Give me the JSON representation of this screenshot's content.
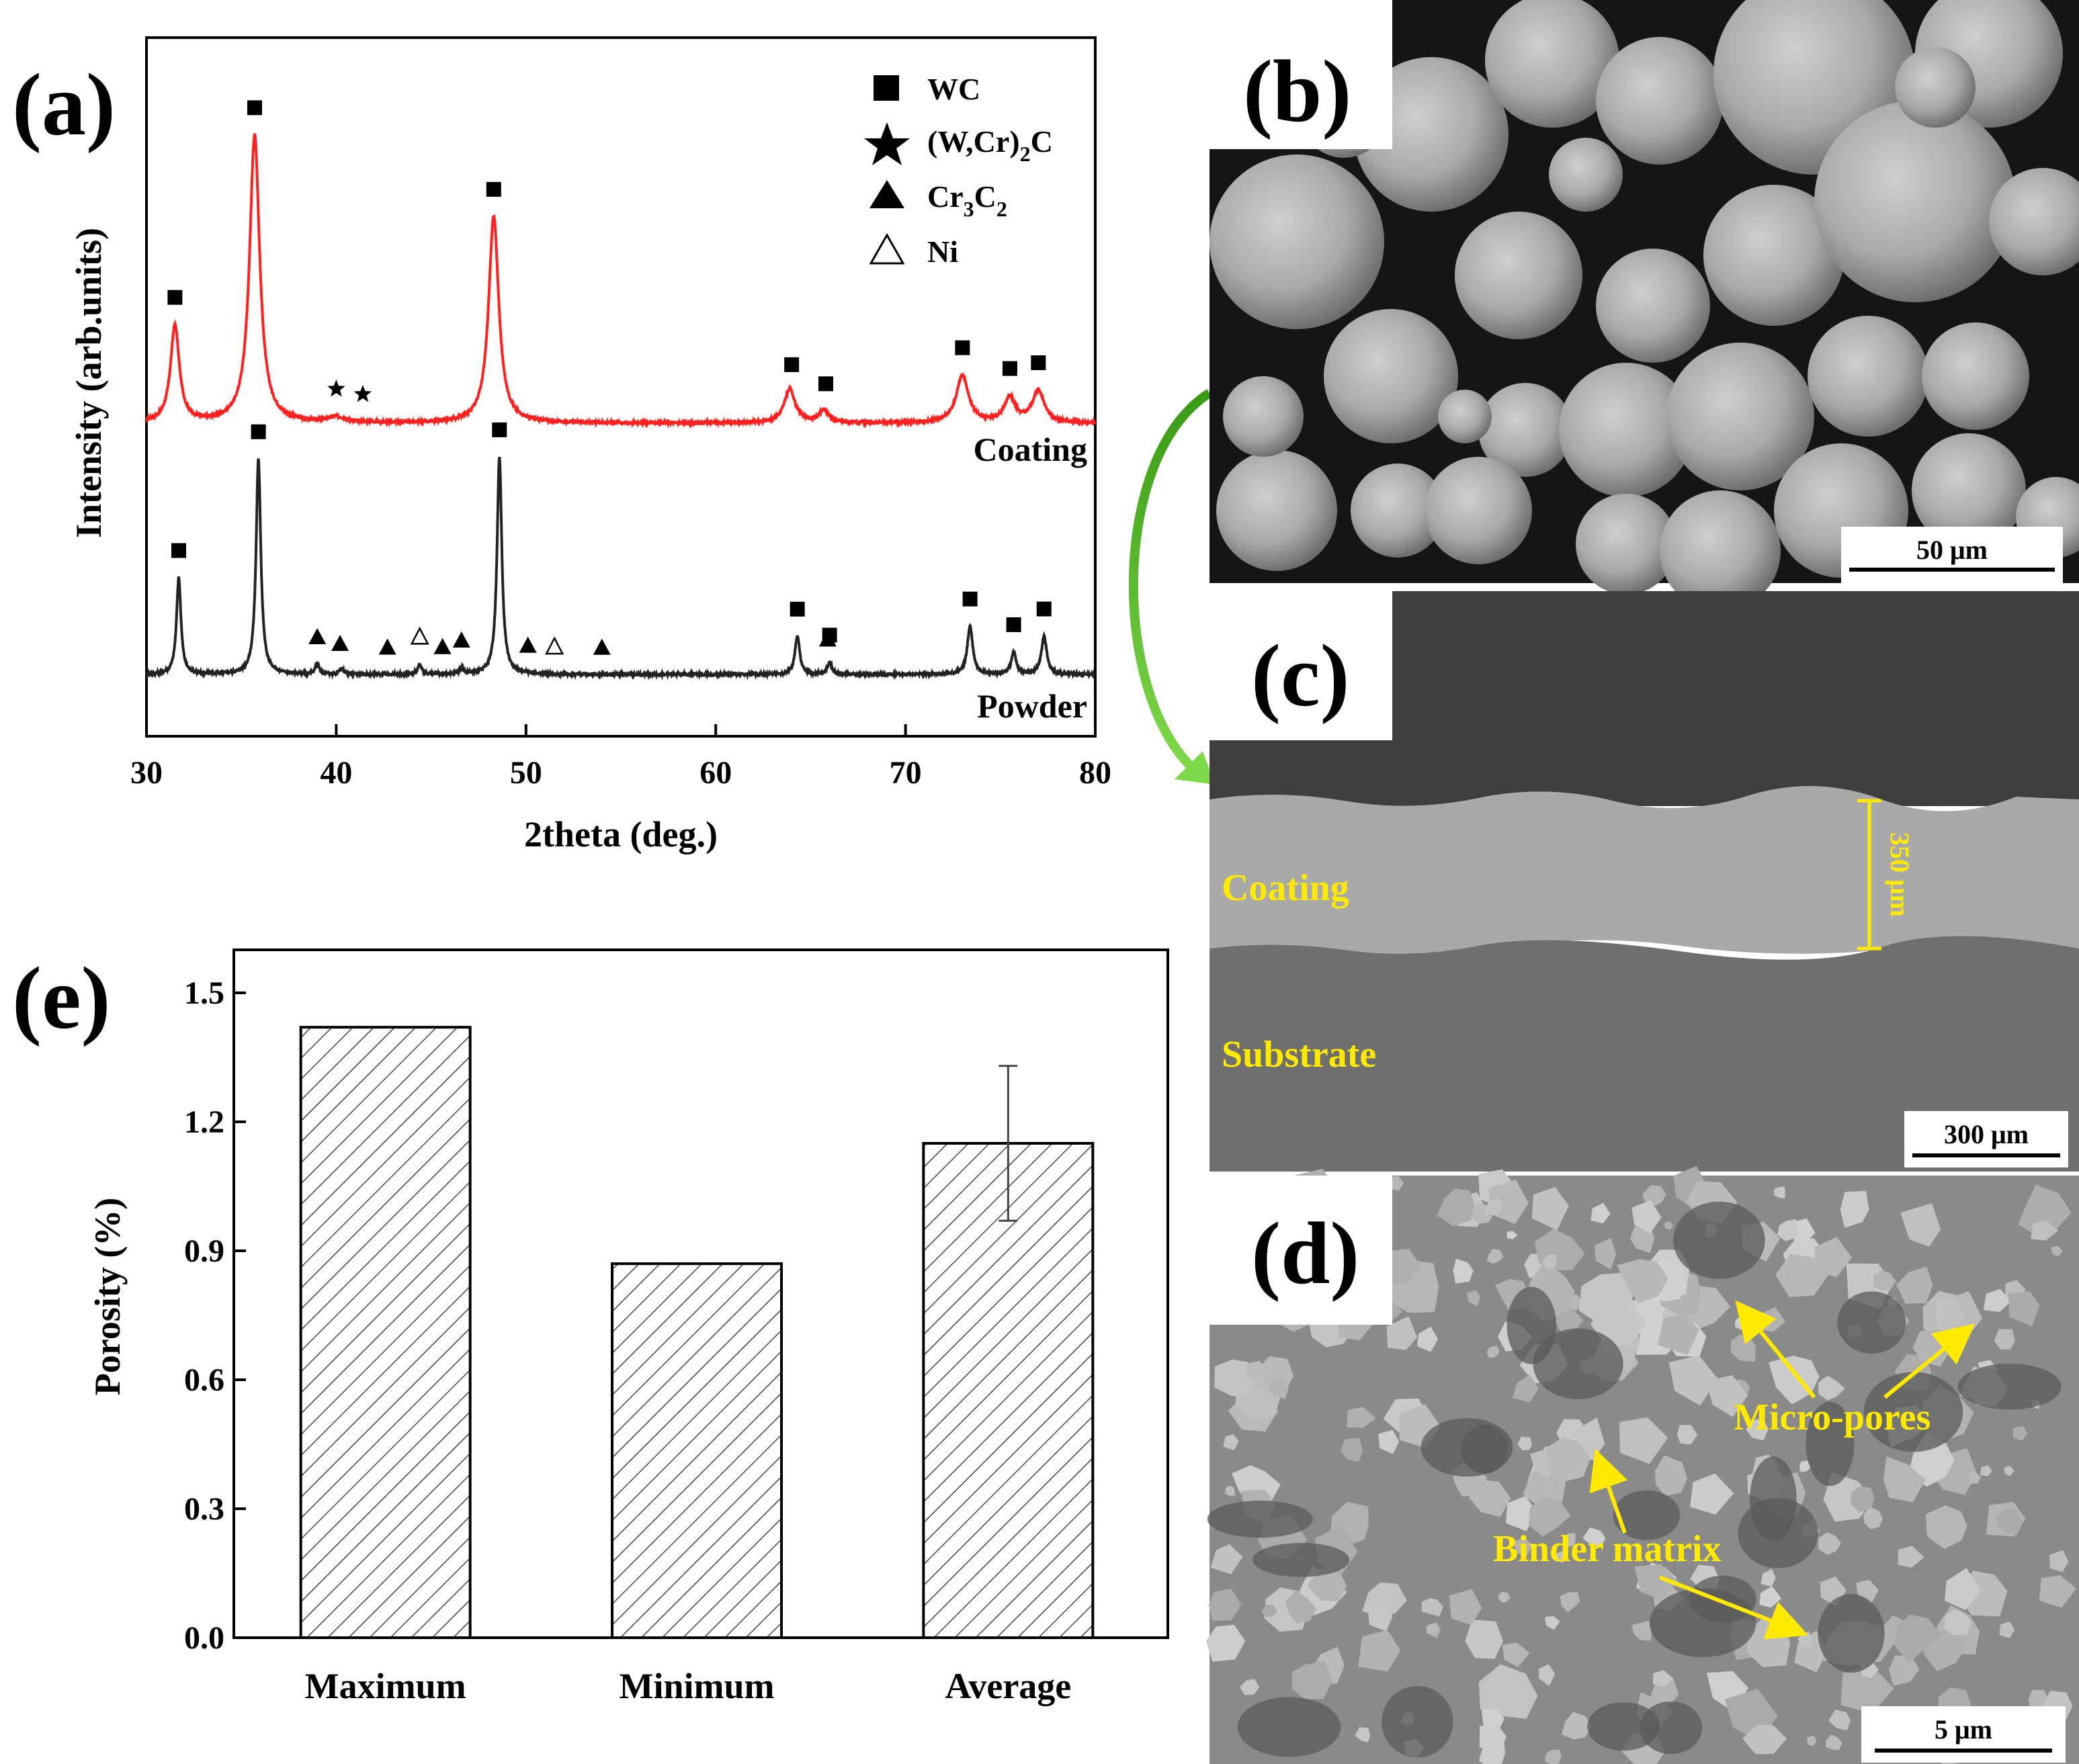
{
  "panels": {
    "a": {
      "letter": "(a)",
      "chart_data": {
        "type": "line",
        "xlabel": "2theta (deg.)",
        "ylabel": "Intensity (arb.units)",
        "xlim": [
          30,
          80
        ],
        "xticks": [
          "30",
          "40",
          "50",
          "60",
          "70",
          "80"
        ],
        "legend": [
          {
            "symbol": "filled-square",
            "label": "WC"
          },
          {
            "symbol": "star",
            "label": "(W,Cr)",
            "sub": "2",
            "suffix": "C"
          },
          {
            "symbol": "filled-triangle",
            "label": "Cr",
            "sub": "3",
            "mid": "C",
            "sub2": "2"
          },
          {
            "symbol": "open-triangle",
            "label": "Ni"
          }
        ],
        "series": [
          {
            "name": "Coating",
            "color": "#ff2020",
            "baseline": 0.0,
            "peaks": [
              {
                "x": 31.5,
                "h": 0.55,
                "w": 0.28
              },
              {
                "x": 35.7,
                "h": 1.63,
                "w": 0.32
              },
              {
                "x": 40.0,
                "h": 0.03,
                "w": 0.5
              },
              {
                "x": 48.3,
                "h": 1.17,
                "w": 0.32
              },
              {
                "x": 63.9,
                "h": 0.19,
                "w": 0.35
              },
              {
                "x": 65.7,
                "h": 0.07,
                "w": 0.3
              },
              {
                "x": 73.0,
                "h": 0.27,
                "w": 0.38
              },
              {
                "x": 75.5,
                "h": 0.14,
                "w": 0.35
              },
              {
                "x": 77.0,
                "h": 0.18,
                "w": 0.38
              }
            ],
            "markers": [
              {
                "x": 31.5,
                "sym": "filled-square"
              },
              {
                "x": 35.7,
                "sym": "filled-square"
              },
              {
                "x": 40.0,
                "sym": "star"
              },
              {
                "x": 41.4,
                "sym": "star"
              },
              {
                "x": 48.3,
                "sym": "filled-square"
              },
              {
                "x": 64.0,
                "sym": "filled-square"
              },
              {
                "x": 65.8,
                "sym": "filled-square"
              },
              {
                "x": 73.0,
                "sym": "filled-square"
              },
              {
                "x": 75.5,
                "sym": "filled-square"
              },
              {
                "x": 77.0,
                "sym": "filled-square"
              }
            ]
          },
          {
            "name": "Powder",
            "color": "#222222",
            "baseline": 0.0,
            "peaks": [
              {
                "x": 31.7,
                "h": 0.48,
                "w": 0.14
              },
              {
                "x": 35.9,
                "h": 1.07,
                "w": 0.15
              },
              {
                "x": 39.0,
                "h": 0.05,
                "w": 0.12
              },
              {
                "x": 40.3,
                "h": 0.03,
                "w": 0.12
              },
              {
                "x": 44.4,
                "h": 0.05,
                "w": 0.12
              },
              {
                "x": 46.6,
                "h": 0.03,
                "w": 0.12
              },
              {
                "x": 48.6,
                "h": 1.08,
                "w": 0.15
              },
              {
                "x": 64.3,
                "h": 0.19,
                "w": 0.15
              },
              {
                "x": 66.0,
                "h": 0.06,
                "w": 0.14
              },
              {
                "x": 73.4,
                "h": 0.24,
                "w": 0.17
              },
              {
                "x": 75.7,
                "h": 0.11,
                "w": 0.15
              },
              {
                "x": 77.3,
                "h": 0.19,
                "w": 0.17
              }
            ],
            "markers": [
              {
                "x": 31.7,
                "sym": "filled-square"
              },
              {
                "x": 35.9,
                "sym": "filled-square"
              },
              {
                "x": 39.0,
                "sym": "filled-triangle"
              },
              {
                "x": 40.2,
                "sym": "filled-triangle"
              },
              {
                "x": 42.7,
                "sym": "filled-triangle"
              },
              {
                "x": 44.4,
                "sym": "open-triangle"
              },
              {
                "x": 45.6,
                "sym": "filled-triangle"
              },
              {
                "x": 46.6,
                "sym": "filled-triangle"
              },
              {
                "x": 48.6,
                "sym": "filled-square"
              },
              {
                "x": 50.1,
                "sym": "filled-triangle"
              },
              {
                "x": 51.5,
                "sym": "open-triangle"
              },
              {
                "x": 54.0,
                "sym": "filled-triangle"
              },
              {
                "x": 64.3,
                "sym": "filled-square"
              },
              {
                "x": 65.9,
                "sym": "filled-triangle"
              },
              {
                "x": 66.0,
                "sym": "filled-square"
              },
              {
                "x": 73.4,
                "sym": "filled-square"
              },
              {
                "x": 75.7,
                "sym": "filled-square"
              },
              {
                "x": 77.3,
                "sym": "filled-square"
              }
            ]
          }
        ]
      }
    },
    "b": {
      "letter": "(b)",
      "scale_bar": "50 μm"
    },
    "c": {
      "letter": "(c)",
      "scale_bar": "300 μm",
      "coating_label": "Coating",
      "substrate_label": "Substrate",
      "thickness_label": "350 μm"
    },
    "d": {
      "letter": "(d)",
      "scale_bar": "5 μm",
      "micropores_label": "Micro-pores",
      "binder_label": "Binder matrix"
    },
    "e": {
      "letter": "(e)",
      "chart_data": {
        "type": "bar",
        "categories": [
          "Maximum",
          "Minimum",
          "Average"
        ],
        "values": [
          1.42,
          0.87,
          1.15
        ],
        "errors": [
          null,
          null,
          0.18
        ],
        "ylabel": "Porosity (%)",
        "ylim": [
          0.0,
          1.6
        ],
        "yticks": [
          "0.0",
          "0.3",
          "0.6",
          "0.9",
          "1.2",
          "1.5"
        ]
      }
    }
  },
  "colors": {
    "coating_trace": "#ff2020",
    "powder_trace": "#222222",
    "annotation_yellow": "#ffea00",
    "arrow_green": "#4cc21e"
  }
}
